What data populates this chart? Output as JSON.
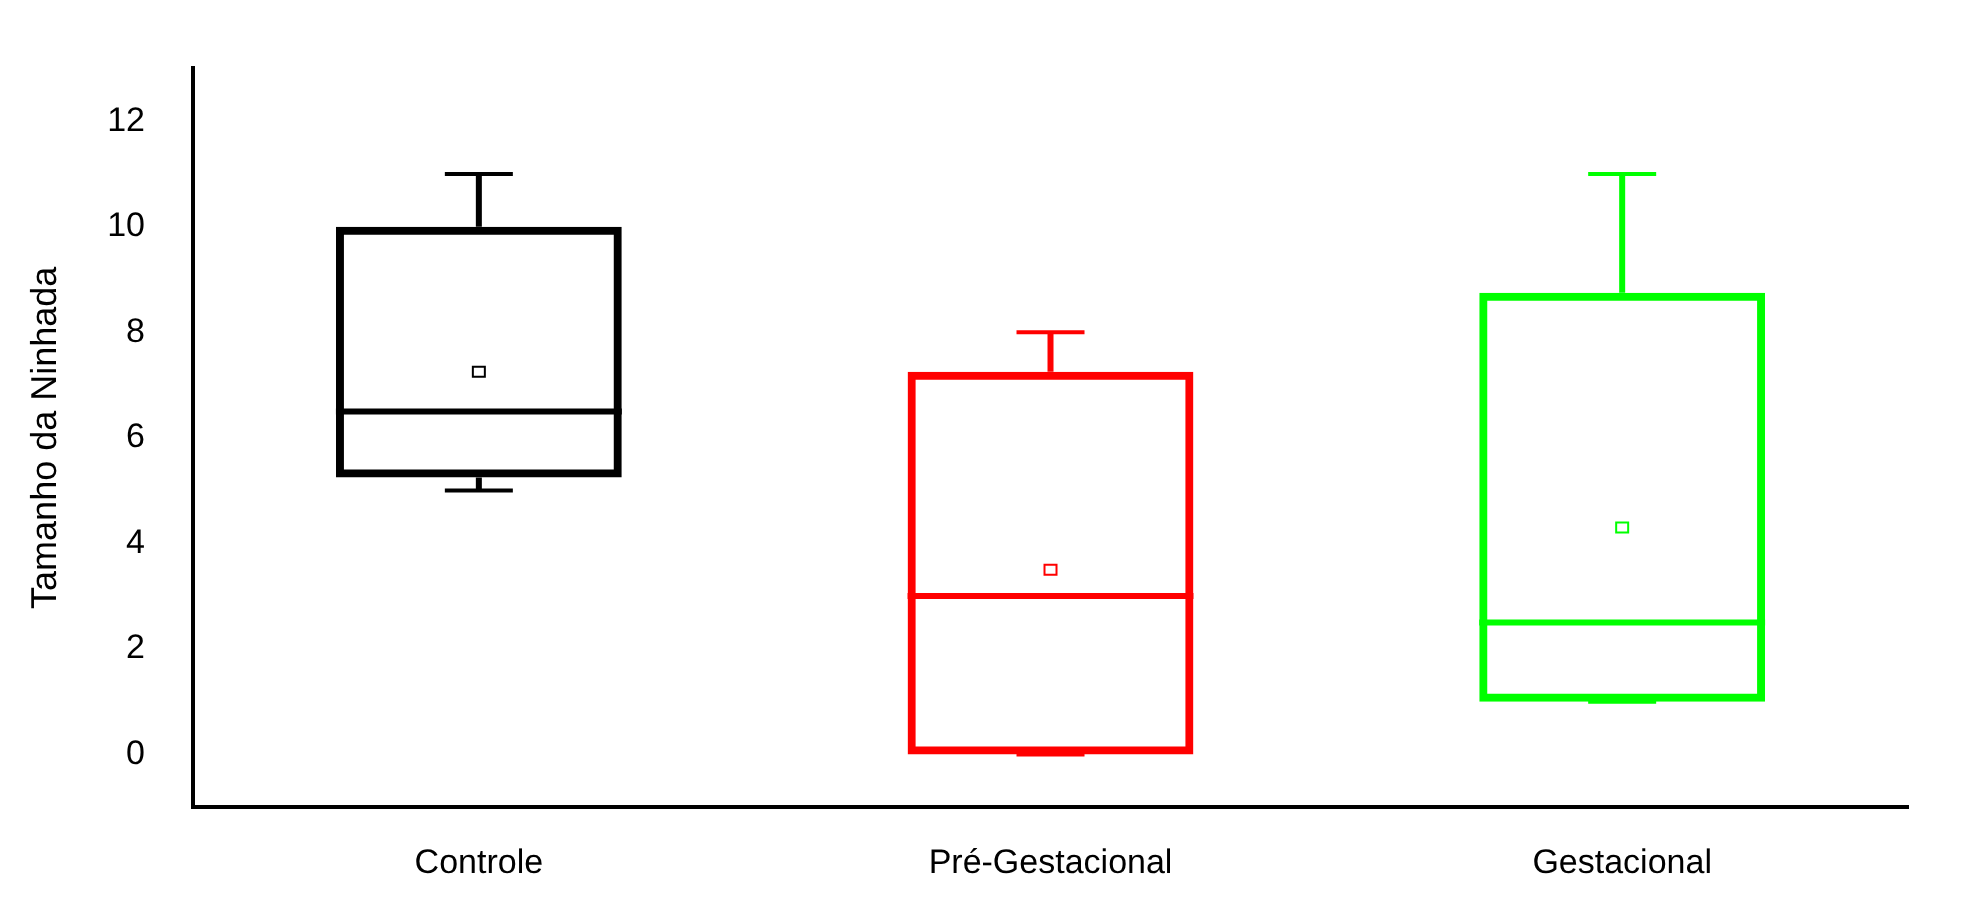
{
  "chart_data": {
    "type": "box",
    "ylabel": "Tamanho da Ninhada",
    "categories": [
      "Controle",
      "Pré-Gestacional",
      "Gestacional"
    ],
    "ylim": [
      -1,
      13
    ],
    "yticks": [
      0,
      2,
      4,
      6,
      8,
      10,
      12
    ],
    "grid": false,
    "legend": false,
    "series": [
      {
        "colors": [
          "#000000",
          "#ff0000",
          "#00ff00"
        ],
        "boxes": [
          {
            "low": 5,
            "q1": 5.25,
            "median": 6.5,
            "q3": 10,
            "high": 11,
            "mean": 7.25
          },
          {
            "low": 0,
            "q1": 0,
            "median": 3,
            "q3": 7.25,
            "high": 8,
            "mean": 3.5
          },
          {
            "low": 1,
            "q1": 1,
            "median": 2.5,
            "q3": 8.75,
            "high": 11,
            "mean": 4.3
          }
        ]
      }
    ]
  }
}
